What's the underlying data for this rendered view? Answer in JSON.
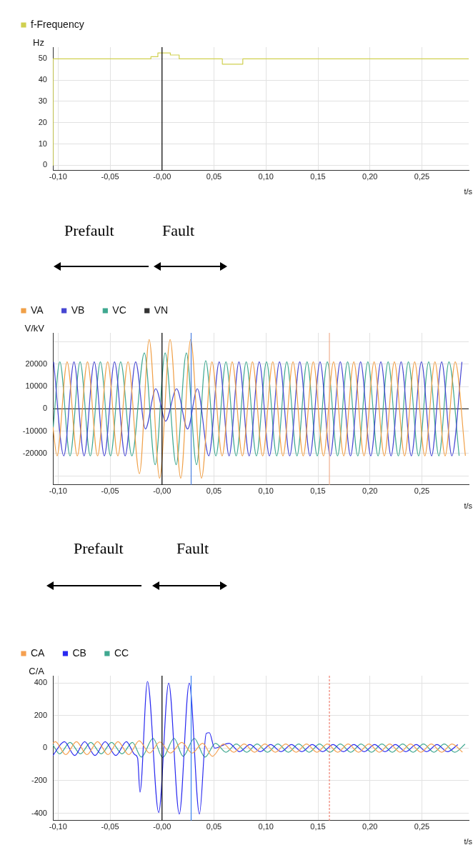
{
  "chart_data": [
    {
      "type": "step",
      "legend": "top left",
      "ylabel": "Hz",
      "xlabel": "t/s",
      "grid": true,
      "xlim": [
        -0.105,
        0.295
      ],
      "xticks": [
        {
          "value": -0.1,
          "label": "-0,10"
        },
        {
          "value": -0.05,
          "label": "-0,05"
        },
        {
          "value": 0,
          "label": "-0,00"
        },
        {
          "value": 0.05,
          "label": "0,05"
        },
        {
          "value": 0.1,
          "label": "0,10"
        },
        {
          "value": 0.15,
          "label": "0,15"
        },
        {
          "value": 0.2,
          "label": "0,20"
        },
        {
          "value": 0.25,
          "label": "0,25"
        }
      ],
      "ylim": [
        -2.5,
        55.5
      ],
      "yticks": [
        0,
        10,
        20,
        30,
        40,
        50
      ],
      "ref_lines": [
        {
          "axis": "x",
          "value": 0,
          "color": "#000000"
        }
      ],
      "series": [
        {
          "name": "f-Frequency",
          "color": "#d0d050",
          "x": [
            -0.105,
            -0.1048,
            -0.0107,
            -0.004,
            0.008,
            0.0165,
            0.058,
            0.0777,
            0.295
          ],
          "values": [
            0,
            50,
            51,
            52.8,
            51.8,
            50,
            47.5,
            50,
            50
          ]
        }
      ]
    },
    {
      "type": "line",
      "legend": "top left",
      "ylabel": "V/kV",
      "xlabel": "t/s",
      "grid": true,
      "annotations": [
        "Prefault",
        "Fault"
      ],
      "xlim": [
        -0.105,
        0.295
      ],
      "xticks": [
        {
          "value": -0.1,
          "label": "-0,10"
        },
        {
          "value": -0.05,
          "label": "-0,05"
        },
        {
          "value": 0,
          "label": "-0,00"
        },
        {
          "value": 0.05,
          "label": "0,05"
        },
        {
          "value": 0.1,
          "label": "0,10"
        },
        {
          "value": 0.15,
          "label": "0,15"
        },
        {
          "value": 0.2,
          "label": "0,20"
        },
        {
          "value": 0.25,
          "label": "0,25"
        }
      ],
      "ylim": [
        -34000,
        34000
      ],
      "yticks": [
        {
          "value": -30000,
          "label": null
        },
        -20000,
        -10000,
        0,
        10000,
        20000,
        {
          "value": 30000,
          "label": null
        }
      ],
      "ref_lines": [
        {
          "axis": "x",
          "value": 0,
          "color": "#000000"
        },
        {
          "axis": "x",
          "value": 0.028,
          "color": "#4a7fe0"
        },
        {
          "axis": "x",
          "value": 0.161,
          "color": "#f0b090"
        }
      ],
      "series": [
        {
          "name": "VA",
          "color": "#f0a048",
          "x": [
            -0.105,
            -0.101,
            -0.0913,
            -0.0815,
            -0.0717,
            -0.062,
            -0.0523,
            -0.0425,
            -0.0327,
            -0.0217,
            -0.0124,
            -0.0023,
            0.0078,
            0.018,
            0.0275,
            0.038,
            0.048,
            0.0578,
            0.0675,
            0.0773,
            0.087,
            0.0968,
            0.1065,
            0.1163,
            0.126,
            0.1358,
            0.1455,
            0.1553,
            0.165,
            0.1748,
            0.1845,
            0.1943,
            0.204,
            0.2138,
            0.2235,
            0.2333,
            0.243,
            0.2528,
            0.2625,
            0.2723,
            0.282,
            0.2918
          ],
          "values": [
            -8000,
            -21000,
            21000,
            -21000,
            21000,
            -21000,
            21000,
            -21000,
            21000,
            -29000,
            31000,
            -31000,
            31000,
            -31000,
            31000,
            -31000,
            21000,
            -21000,
            21000,
            -21000,
            21000,
            -21000,
            21000,
            -21000,
            21000,
            -21000,
            21000,
            -21000,
            21000,
            -21000,
            21000,
            -21000,
            21000,
            -21000,
            21000,
            -21000,
            21000,
            -21000,
            21000,
            -21000,
            21000,
            -21000
          ]
        },
        {
          "name": "VB",
          "color": "#4646d2",
          "x": [
            -0.1043,
            -0.0945,
            -0.0847,
            -0.075,
            -0.0652,
            -0.0555,
            -0.0457,
            -0.0355,
            -0.0254,
            -0.016,
            -0.006,
            0.0035,
            0.014,
            0.0246,
            0.034,
            0.045,
            0.055,
            0.0645,
            0.074,
            0.0838,
            0.0935,
            0.1033,
            0.113,
            0.1228,
            0.1325,
            0.1423,
            0.152,
            0.1618,
            0.1715,
            0.1813,
            0.191,
            0.2008,
            0.2105,
            0.2203,
            0.23,
            0.2398,
            0.2495,
            0.2593,
            0.269,
            0.2788,
            0.2885
          ],
          "values": [
            21000,
            -21000,
            21000,
            -21000,
            21000,
            -21000,
            21000,
            -21000,
            21000,
            -9000,
            9000,
            -5500,
            9000,
            -9000,
            9000,
            -21000,
            21000,
            -21000,
            21000,
            -21000,
            21000,
            -21000,
            21000,
            -21000,
            21000,
            -21000,
            21000,
            -21000,
            21000,
            -21000,
            21000,
            -21000,
            21000,
            -21000,
            21000,
            -21000,
            21000,
            -21000,
            21000,
            -21000,
            21000
          ]
        },
        {
          "name": "VC",
          "color": "#3fa890",
          "x": [
            -0.105,
            -0.0983,
            -0.0885,
            -0.0788,
            -0.069,
            -0.0593,
            -0.0495,
            -0.0398,
            -0.029,
            -0.017,
            -0.0066,
            0.003,
            0.0136,
            0.0234,
            0.0332,
            0.042,
            0.0518,
            0.0615,
            0.0713,
            0.081,
            0.0908,
            0.1005,
            0.1103,
            0.12,
            0.1298,
            0.1395,
            0.1493,
            0.159,
            0.1688,
            0.1785,
            0.1883,
            0.198,
            0.2078,
            0.2175,
            0.2273,
            0.237,
            0.2468,
            0.2565,
            0.2663,
            0.276,
            0.2858
          ],
          "values": [
            -10000,
            21000,
            -21000,
            21000,
            -21000,
            21000,
            -21000,
            21000,
            -21000,
            25000,
            -25000,
            25000,
            -25000,
            25000,
            -25000,
            21500,
            -21000,
            21000,
            -21000,
            21000,
            -21000,
            21000,
            -21000,
            21000,
            -21000,
            21000,
            -21000,
            21000,
            -21000,
            21000,
            -21000,
            21000,
            -21000,
            21000,
            -21000,
            21000,
            -21000,
            21000,
            -21000,
            21000,
            -21000
          ]
        },
        {
          "name": "VN",
          "color": "#333333",
          "x": [
            -0.105,
            0.295
          ],
          "values": [
            0,
            0
          ]
        }
      ]
    },
    {
      "type": "line",
      "legend": "top left",
      "ylabel": "C/A",
      "xlabel": "t/s",
      "grid": true,
      "annotations": [
        "Prefault",
        "Fault"
      ],
      "xlim": [
        -0.105,
        0.295
      ],
      "xticks": [
        {
          "value": -0.1,
          "label": "-0,10"
        },
        {
          "value": -0.05,
          "label": "-0,05"
        },
        {
          "value": 0,
          "label": "-0,00"
        },
        {
          "value": 0.05,
          "label": "0,05"
        },
        {
          "value": 0.1,
          "label": "0,10"
        },
        {
          "value": 0.15,
          "label": "0,15"
        },
        {
          "value": 0.2,
          "label": "0,20"
        },
        {
          "value": 0.25,
          "label": "0,25"
        }
      ],
      "ylim": [
        -445,
        445
      ],
      "yticks": [
        -400,
        -200,
        0,
        200,
        400
      ],
      "ref_lines": [
        {
          "axis": "x",
          "value": 0,
          "color": "#000000"
        },
        {
          "axis": "x",
          "value": 0.028,
          "color": "#3a80f0"
        },
        {
          "axis": "x",
          "value": 0.161,
          "color": "#f08070",
          "line_style": "dashed"
        }
      ],
      "series": [
        {
          "name": "CA",
          "color": "#f5a050",
          "x": [
            -0.105,
            -0.1026,
            -0.0926,
            -0.0823,
            -0.0722,
            -0.062,
            -0.052,
            -0.0424,
            -0.032,
            -0.022,
            -0.012,
            -0.002,
            0.008,
            0.019,
            0.029,
            0.039,
            0.0485,
            0.059,
            0.069,
            0.079,
            0.089,
            0.099,
            0.109,
            0.119,
            0.129,
            0.139,
            0.149,
            0.159,
            0.169,
            0.179,
            0.189,
            0.199,
            0.209,
            0.219,
            0.229,
            0.239,
            0.249,
            0.259,
            0.269,
            0.279,
            0.289
          ],
          "values": [
            30,
            40,
            -40,
            40,
            -40,
            40,
            -40,
            40,
            -40,
            45,
            -30,
            38,
            -30,
            35,
            -30,
            30,
            -50,
            25,
            -25,
            25,
            -25,
            25,
            -25,
            25,
            -25,
            25,
            -25,
            25,
            -25,
            25,
            -25,
            25,
            -25,
            25,
            -25,
            25,
            -25,
            25,
            -25,
            25,
            -25
          ]
        },
        {
          "name": "CB",
          "color": "#2a2af0",
          "x": [
            -0.105,
            -0.0939,
            -0.084,
            -0.0744,
            -0.0645,
            -0.0547,
            -0.0445,
            -0.0343,
            -0.0262,
            -0.0235,
            -0.0212,
            -0.014,
            -0.0032,
            0.0064,
            0.0166,
            0.0262,
            0.036,
            0.0425,
            0.0455,
            0.0506,
            0.0645,
            0.0745,
            0.0845,
            0.0945,
            0.1045,
            0.1145,
            0.1245,
            0.1345,
            0.1445,
            0.1545,
            0.1645,
            0.1745,
            0.1845,
            0.1945,
            0.2045,
            0.2145,
            0.2245,
            0.2345,
            0.2445,
            0.2545,
            0.2645,
            0.2745,
            0.2845
          ],
          "values": [
            -45,
            40,
            -45,
            40,
            -45,
            40,
            -45,
            40,
            -40,
            -60,
            -270,
            410,
            -395,
            400,
            -405,
            400,
            -405,
            90,
            95,
            0,
            30,
            -22,
            22,
            -22,
            22,
            -22,
            22,
            -22,
            22,
            -22,
            22,
            -22,
            22,
            -22,
            22,
            -22,
            22,
            -22,
            22,
            -22,
            22,
            -22,
            22
          ]
        },
        {
          "name": "CC",
          "color": "#40a890",
          "x": [
            -0.105,
            -0.0985,
            -0.0885,
            -0.0785,
            -0.0685,
            -0.0585,
            -0.0485,
            -0.0385,
            -0.0285,
            -0.0198,
            -0.0087,
            0.0006,
            0.0116,
            0.0203,
            0.031,
            0.0413,
            0.0515,
            0.0615,
            0.0715,
            0.0815,
            0.0915,
            0.1015,
            0.1115,
            0.1215,
            0.1315,
            0.1415,
            0.1515,
            0.1615,
            0.1715,
            0.1815,
            0.1915,
            0.2015,
            0.2115,
            0.2215,
            0.2315,
            0.2415,
            0.2515,
            0.2615,
            0.2715,
            0.2815,
            0.2915
          ],
          "values": [
            20,
            -35,
            35,
            -35,
            35,
            -35,
            35,
            -35,
            35,
            -55,
            60,
            -58,
            60,
            -50,
            60,
            -55,
            30,
            -25,
            25,
            -25,
            25,
            -25,
            25,
            -25,
            25,
            -25,
            25,
            -25,
            25,
            -25,
            25,
            -25,
            25,
            -25,
            25,
            -25,
            25,
            -25,
            25,
            -25,
            25
          ]
        }
      ]
    }
  ]
}
